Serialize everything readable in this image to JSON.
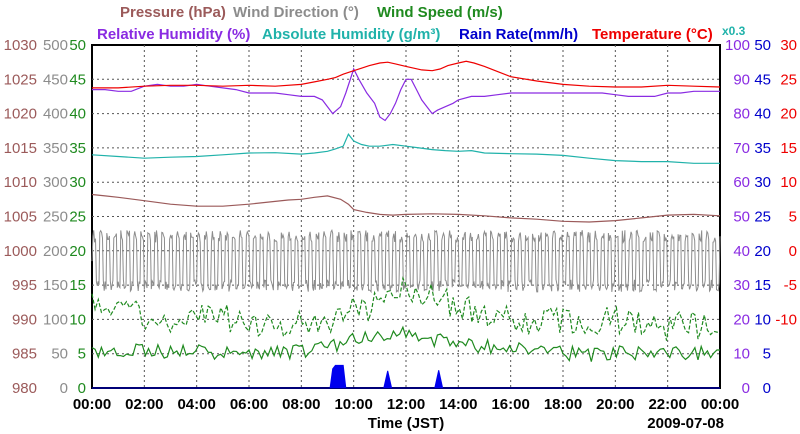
{
  "chart_data": {
    "type": "line",
    "title_rows": [
      [
        {
          "text": "Pressure (hPa)",
          "color": "#9b5a5a"
        },
        {
          "text": "Wind Direction (°)",
          "color": "#8c8c8c"
        },
        {
          "text": "Wind Speed (m/s)",
          "color": "#1f8a1f"
        }
      ],
      [
        {
          "text": "Relative Humidity (%)",
          "color": "#8a2be2"
        },
        {
          "text": "Absolute Humidity (g/m³)",
          "color": "#20b2aa"
        },
        {
          "text": "Rain Rate(mm/h)",
          "color": "#0000cc"
        },
        {
          "text": "Temperature (°C)",
          "color": "#ee0000"
        }
      ]
    ],
    "multiplier_label": "x0.3",
    "xlabel": "Time (JST)",
    "date_label": "2009-07-08",
    "x_ticks": [
      "00:00",
      "02:00",
      "04:00",
      "06:00",
      "08:00",
      "10:00",
      "12:00",
      "14:00",
      "16:00",
      "18:00",
      "20:00",
      "22:00",
      "00:00"
    ],
    "x_range_hours": [
      0,
      24
    ],
    "left_axes": [
      {
        "name": "Pressure",
        "color": "#9b5a5a",
        "ticks": [
          "1030",
          "1025",
          "1020",
          "1015",
          "1010",
          "1005",
          "1000",
          "995",
          "990",
          "985",
          "980"
        ]
      },
      {
        "name": "Wind Direction",
        "color": "#8c8c8c",
        "ticks": [
          "500",
          "450",
          "400",
          "350",
          "300",
          "250",
          "200",
          "150",
          "100",
          "50",
          "0"
        ]
      },
      {
        "name": "Wind Speed",
        "color": "#1f8a1f",
        "ticks": [
          "50",
          "45",
          "40",
          "35",
          "30",
          "25",
          "20",
          "15",
          "10",
          "5",
          "0"
        ]
      }
    ],
    "right_axes": [
      {
        "name": "Relative Humidity",
        "color": "#8a2be2",
        "ticks": [
          "100",
          "90",
          "80",
          "70",
          "60",
          "50",
          "40",
          "30",
          "20",
          "10",
          "0"
        ]
      },
      {
        "name": "Rain Rate",
        "color": "#0000cc",
        "ticks": [
          "50",
          "45",
          "40",
          "35",
          "30",
          "25",
          "20",
          "15",
          "10",
          "5",
          "0"
        ]
      },
      {
        "name": "Temperature",
        "color": "#ee0000",
        "ticks": [
          "30",
          "25",
          "20",
          "15",
          "10",
          "5",
          "0",
          "-5",
          "-10"
        ]
      }
    ],
    "temperature_tick_rows": [
      0,
      1,
      2,
      3,
      4,
      5,
      6,
      7,
      8
    ],
    "series": [
      {
        "name": "Relative Humidity",
        "unit": "%",
        "color": "#8a2be2",
        "style": "solid",
        "scale_max": 100,
        "x": [
          0,
          0.5,
          1,
          1.5,
          2,
          2.5,
          3,
          3.5,
          4,
          4.5,
          5,
          5.5,
          6,
          6.5,
          7,
          7.5,
          8,
          8.5,
          8.8,
          9,
          9.2,
          9.5,
          9.7,
          10,
          10.2,
          10.5,
          10.8,
          11,
          11.2,
          11.4,
          11.6,
          11.8,
          12,
          12.2,
          12.4,
          12.6,
          12.8,
          13,
          13.2,
          13.5,
          13.8,
          14,
          14.5,
          15,
          15.5,
          16,
          16.5,
          17,
          17.5,
          18,
          18.5,
          19,
          19.5,
          20,
          20.5,
          21,
          21.5,
          22,
          22.5,
          23,
          23.5,
          24
        ],
        "values": [
          87,
          87,
          86.5,
          86.5,
          88,
          88.5,
          88,
          88,
          88.5,
          88,
          87.5,
          87,
          86,
          86,
          86,
          85.5,
          85,
          85,
          84,
          82,
          80,
          82,
          86,
          93,
          90,
          86,
          83,
          79,
          78,
          80,
          83,
          87,
          90,
          90,
          87,
          84,
          82,
          80,
          81,
          82,
          83,
          84,
          85,
          85,
          85.5,
          86,
          86,
          86,
          86,
          86,
          86,
          86,
          86,
          85.5,
          85,
          85,
          85,
          86,
          86,
          86.5,
          86.5,
          86.5
        ]
      },
      {
        "name": "Temperature",
        "unit": "°C",
        "color": "#ee0000",
        "style": "solid",
        "scale_min": -10,
        "scale_max": 30,
        "x": [
          0,
          1,
          2,
          3,
          4,
          5,
          6,
          7,
          8,
          8.5,
          9,
          9.3,
          9.6,
          10,
          10.3,
          10.6,
          11,
          11.3,
          11.6,
          12,
          12.3,
          12.6,
          13,
          13.3,
          13.6,
          14,
          14.3,
          14.6,
          15,
          15.5,
          16,
          17,
          18,
          19,
          20,
          21,
          22,
          23,
          24
        ],
        "values": [
          25,
          25,
          25.2,
          25.3,
          25.3,
          25.2,
          25.3,
          25.2,
          25.4,
          25.7,
          26,
          26.2,
          26.6,
          27,
          27.3,
          27.6,
          27.9,
          28,
          27.8,
          27.5,
          27.3,
          27.1,
          27,
          27.2,
          27.6,
          27.9,
          28.1,
          27.9,
          27.5,
          26.9,
          26.3,
          25.8,
          25.4,
          25.2,
          25.1,
          25.1,
          25.3,
          25.2,
          25.1
        ]
      },
      {
        "name": "Absolute Humidity",
        "unit": "g/m³ (x0.3)",
        "color": "#20b2aa",
        "style": "solid",
        "scale_max": 100,
        "x": [
          0,
          1,
          2,
          3,
          4,
          5,
          6,
          7,
          8,
          8.5,
          9,
          9.3,
          9.6,
          9.8,
          10,
          10.3,
          10.6,
          11,
          11.5,
          12,
          12.5,
          13,
          13.5,
          14,
          14.5,
          15,
          16,
          17,
          18,
          19,
          20,
          21,
          22,
          23,
          24
        ],
        "values": [
          68,
          67.5,
          67,
          67.3,
          67.5,
          68,
          68.5,
          68.6,
          68.2,
          68.5,
          69,
          69.7,
          70.5,
          74,
          72,
          71,
          70.5,
          70.5,
          71,
          70.5,
          70,
          69.5,
          69.2,
          69,
          69.2,
          68.5,
          68.3,
          68.2,
          67.8,
          67,
          66.3,
          66,
          66,
          65.5,
          65.5
        ]
      },
      {
        "name": "Pressure",
        "unit": "hPa",
        "color": "#9b5a5a",
        "style": "solid",
        "scale_min": 980,
        "scale_max": 1030,
        "x": [
          0,
          0.5,
          1,
          2,
          3,
          4,
          5,
          6,
          7,
          7.5,
          8,
          8.5,
          9,
          9.5,
          9.8,
          10,
          10.5,
          11,
          11.5,
          12,
          13,
          14,
          15,
          16,
          17,
          18,
          19,
          20,
          21,
          22,
          23,
          24
        ],
        "values": [
          1008.2,
          1008,
          1007.8,
          1007.3,
          1006.8,
          1006.5,
          1006.5,
          1006.8,
          1007.2,
          1007.4,
          1007.5,
          1007.8,
          1008,
          1007.5,
          1006.8,
          1006,
          1005.6,
          1005.3,
          1005.2,
          1005.3,
          1005.4,
          1005.3,
          1005.1,
          1004.8,
          1004.6,
          1004.3,
          1004.2,
          1004.4,
          1004.8,
          1005.2,
          1005.3,
          1005.1
        ]
      },
      {
        "name": "Wind Direction",
        "unit": "°",
        "color": "#8c8c8c",
        "style": "solid",
        "scale_max": 500,
        "oscillation": {
          "base": 185,
          "amplitude": 45,
          "period_minutes": 48
        }
      },
      {
        "name": "Wind Speed (gust)",
        "unit": "m/s",
        "color": "#1f8a1f",
        "style": "dashed",
        "scale_max": 50,
        "x": [
          0,
          1,
          2,
          3,
          4,
          5,
          6,
          7,
          8,
          9,
          10,
          11,
          11.5,
          12,
          12.5,
          13,
          14,
          15,
          16,
          17,
          18,
          19,
          20,
          21,
          22,
          23,
          24
        ],
        "values": [
          12,
          11,
          10.5,
          10,
          11,
          10,
          9.5,
          9.5,
          10,
          10,
          11,
          12,
          14,
          15,
          14,
          13,
          12,
          11,
          10,
          10,
          9.5,
          9.5,
          10,
          9.5,
          9,
          9,
          9.5
        ]
      },
      {
        "name": "Wind Speed (mean)",
        "unit": "m/s",
        "color": "#1f8a1f",
        "style": "solid",
        "scale_max": 50,
        "x": [
          0,
          1,
          2,
          3,
          4,
          5,
          6,
          7,
          8,
          9,
          10,
          11,
          11.5,
          12,
          12.5,
          13,
          14,
          15,
          16,
          17,
          18,
          19,
          20,
          21,
          22,
          23,
          24
        ],
        "values": [
          5,
          5.3,
          5.5,
          5,
          5.4,
          5,
          5,
          5.2,
          5.4,
          6,
          7,
          7.5,
          8,
          8,
          7.5,
          7,
          6.5,
          6,
          6,
          5.6,
          5,
          4.9,
          5,
          5.2,
          5,
          5,
          5.3
        ]
      },
      {
        "name": "Rain Rate",
        "unit": "mm/h",
        "color": "#0000ee",
        "style": "area",
        "scale_max": 50,
        "x": [
          0,
          9.1,
          9.2,
          9.3,
          9.6,
          9.7,
          10,
          11,
          11.15,
          11.3,
          11.45,
          11.6,
          12,
          13,
          13.1,
          13.25,
          13.4,
          13.55,
          14,
          24
        ],
        "values": [
          0,
          0,
          2.8,
          3.3,
          3.3,
          0,
          0,
          0,
          0,
          2.5,
          0,
          0,
          0,
          0,
          0,
          2.6,
          0,
          0,
          0,
          0
        ]
      }
    ]
  }
}
